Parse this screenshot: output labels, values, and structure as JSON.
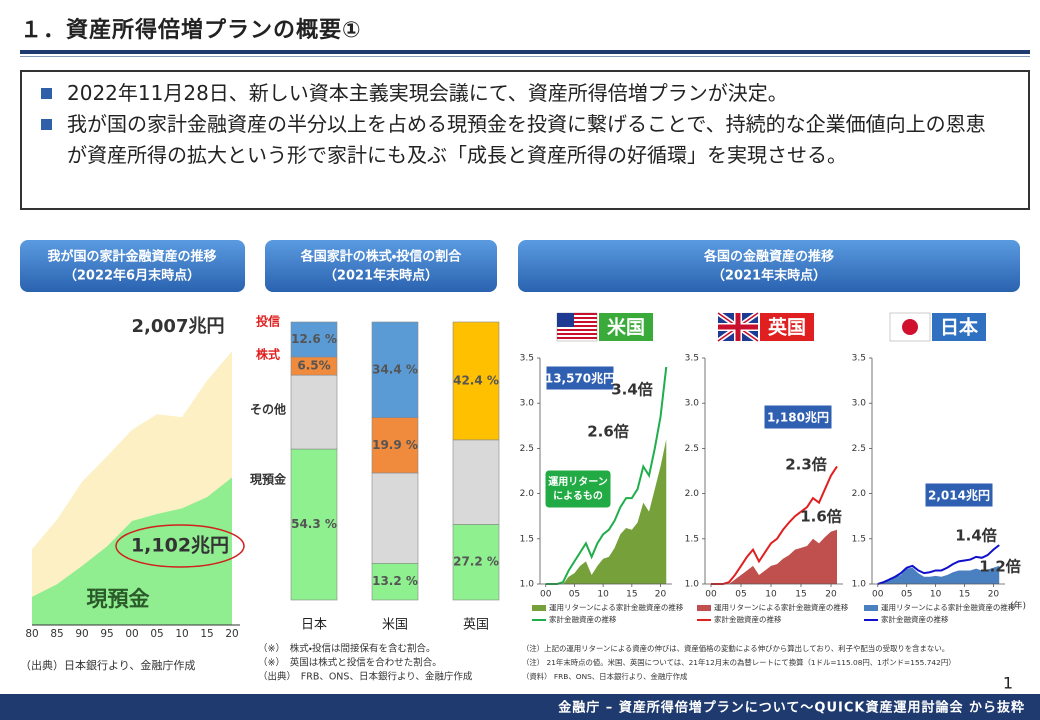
{
  "header": {
    "title": "１．資産所得倍増プランの概要①"
  },
  "bullets": [
    "2022年11月28日、新しい資本主義実現会議にて、資産所得倍増プランが決定。",
    "我が国の家計金融資産の半分以上を占める現預金を投資に繋げることで、持続的な企業価値向上の恩恵が資産所得の拡大という形で家計にも及ぶ「成長と資産所得の好循環」を実現させる。"
  ],
  "panels": [
    {
      "title": "我が国の家計金融資産の推移",
      "subtitle": "（2022年6月末時点）"
    },
    {
      "title": "各国家計の株式・投信の割合",
      "subtitle": "（2021年末時点）"
    },
    {
      "title": "各国の金融資産の推移",
      "subtitle": "（2021年末時点）"
    }
  ],
  "chart_data": [
    {
      "type": "area",
      "categories": [
        "80",
        "85",
        "90",
        "95",
        "00",
        "05",
        "10",
        "15",
        "20"
      ],
      "ylim": [
        0,
        2100
      ],
      "series": [
        {
          "color": "#fdf0c4",
          "values": [
            540,
            750,
            1020,
            1200,
            1390,
            1500,
            1480,
            1740,
            1950
          ]
        },
        {
          "name": "現預金",
          "color": "#90ee90",
          "values": [
            200,
            290,
            420,
            560,
            740,
            790,
            830,
            910,
            1050
          ]
        }
      ],
      "annotations": [
        "2,007兆円",
        "1,102兆円"
      ]
    },
    {
      "type": "stacked_bar",
      "categories": [
        "日本",
        "米国",
        "英国"
      ],
      "ylim": [
        0,
        100
      ],
      "series": [
        {
          "name": "現預金",
          "color": "#8ef08e",
          "label_color": "#333333",
          "values": [
            54.3,
            13.2,
            27.2
          ],
          "value_labels": [
            "54.3 %",
            "13.2 %",
            "27.2 %"
          ]
        },
        {
          "name": "その他",
          "color": "#d9d9d9",
          "label_color": "#333333",
          "values": [
            26.6,
            32.5,
            30.4
          ]
        },
        {
          "name": "株式",
          "color": "#f08a3c",
          "label_color": "#e02020",
          "values": [
            6.5,
            19.9,
            null
          ],
          "value_labels": [
            "6.5%",
            "19.9 %",
            null
          ]
        },
        {
          "name": "投信",
          "color": "#5b9bd5",
          "label_color": "#e02020",
          "values": [
            12.6,
            34.4,
            null
          ],
          "value_labels": [
            "12.6 %",
            "34.4 %",
            null
          ]
        },
        {
          "color": "#ffc000",
          "values": [
            null,
            null,
            42.4
          ],
          "value_labels": [
            null,
            null,
            "42.4 %"
          ]
        }
      ]
    },
    {
      "type": "line",
      "title": "米国",
      "x": [
        0,
        1,
        2,
        3,
        4,
        5,
        6,
        7,
        8,
        9,
        10,
        11,
        12,
        13,
        14,
        15,
        16,
        17,
        18,
        19,
        20,
        21
      ],
      "xlim": [
        -1,
        22
      ],
      "ylim": [
        1,
        3.5
      ],
      "xticks": [
        {
          "value": 0,
          "label": "00"
        },
        {
          "value": 5,
          "label": "05"
        },
        10,
        15,
        20
      ],
      "yticks": [
        {
          "value": 1,
          "label": "1.0"
        },
        1.5,
        {
          "value": 2,
          "label": "2.0"
        },
        2.5,
        {
          "value": 3,
          "label": "3.0"
        },
        3.5
      ],
      "series": [
        {
          "name": "運用リターンによる家計金融資産の推移",
          "style": "area",
          "color": "#76a03a",
          "values": [
            1.0,
            1.0,
            1.0,
            1.0,
            1.08,
            1.12,
            1.2,
            1.25,
            1.1,
            1.2,
            1.28,
            1.3,
            1.4,
            1.55,
            1.62,
            1.6,
            1.68,
            1.9,
            1.8,
            2.05,
            2.3,
            2.6
          ]
        },
        {
          "name": "家計金融資産の推移",
          "style": "line",
          "color": "#1fae4a",
          "values": [
            1.0,
            1.0,
            1.0,
            1.02,
            1.15,
            1.25,
            1.35,
            1.45,
            1.3,
            1.45,
            1.55,
            1.6,
            1.7,
            1.85,
            1.95,
            1.95,
            2.05,
            2.3,
            2.2,
            2.5,
            2.85,
            3.4
          ]
        }
      ],
      "annotations": [
        "13,570兆円",
        "3.4倍",
        "2.6倍"
      ],
      "note": [
        "運用リターン",
        "によるもの"
      ]
    },
    {
      "type": "line",
      "title": "英国",
      "x": [
        0,
        1,
        2,
        3,
        4,
        5,
        6,
        7,
        8,
        9,
        10,
        11,
        12,
        13,
        14,
        15,
        16,
        17,
        18,
        19,
        20,
        21
      ],
      "xlim": [
        -1,
        22
      ],
      "ylim": [
        1,
        3.5
      ],
      "xticks": [
        {
          "value": 0,
          "label": "00"
        },
        {
          "value": 5,
          "label": "05"
        },
        10,
        15,
        20
      ],
      "yticks": [
        {
          "value": 1,
          "label": "1.0"
        },
        1.5,
        {
          "value": 2,
          "label": "2.0"
        },
        2.5,
        {
          "value": 3,
          "label": "3.0"
        },
        3.5
      ],
      "series": [
        {
          "name": "運用リターンによる家計金融資産の推移",
          "style": "area",
          "color": "#c0504d",
          "values": [
            1.0,
            1.0,
            1.0,
            1.0,
            1.05,
            1.1,
            1.15,
            1.2,
            1.1,
            1.15,
            1.2,
            1.22,
            1.28,
            1.32,
            1.38,
            1.4,
            1.42,
            1.5,
            1.45,
            1.52,
            1.58,
            1.6
          ]
        },
        {
          "name": "家計金融資産の推移",
          "style": "line",
          "color": "#e02020",
          "values": [
            1.0,
            1.0,
            1.0,
            1.02,
            1.1,
            1.2,
            1.3,
            1.38,
            1.25,
            1.35,
            1.45,
            1.5,
            1.6,
            1.68,
            1.75,
            1.8,
            1.85,
            1.95,
            1.9,
            2.05,
            2.2,
            2.3
          ]
        }
      ],
      "annotations": [
        "1,180兆円",
        "2.3倍",
        "1.6倍"
      ]
    },
    {
      "type": "line",
      "title": "日本",
      "x": [
        0,
        1,
        2,
        3,
        4,
        5,
        6,
        7,
        8,
        9,
        10,
        11,
        12,
        13,
        14,
        15,
        16,
        17,
        18,
        19,
        20,
        21
      ],
      "xlim": [
        -1,
        22
      ],
      "ylim": [
        1,
        3.5
      ],
      "xlabel": "(年)",
      "xticks": [
        {
          "value": 0,
          "label": "00"
        },
        {
          "value": 5,
          "label": "05"
        },
        10,
        15,
        20
      ],
      "yticks": [
        {
          "value": 1,
          "label": "1.0"
        },
        1.5,
        {
          "value": 2,
          "label": "2.0"
        },
        2.5,
        {
          "value": 3,
          "label": "3.0"
        },
        3.5
      ],
      "series": [
        {
          "name": "運用リターンによる家計金融資産の推移",
          "style": "area",
          "color": "#4a7fc0",
          "values": [
            1.0,
            1.01,
            1.05,
            1.08,
            1.1,
            1.17,
            1.18,
            1.12,
            1.08,
            1.08,
            1.09,
            1.08,
            1.1,
            1.13,
            1.15,
            1.15,
            1.15,
            1.17,
            1.15,
            1.16,
            1.18,
            1.2
          ]
        },
        {
          "name": "家計金融資産の推移",
          "style": "line",
          "color": "#1010cc",
          "values": [
            1.0,
            1.02,
            1.05,
            1.08,
            1.12,
            1.18,
            1.2,
            1.15,
            1.12,
            1.13,
            1.15,
            1.15,
            1.18,
            1.22,
            1.25,
            1.26,
            1.27,
            1.3,
            1.29,
            1.32,
            1.38,
            1.43
          ]
        }
      ],
      "annotations": [
        "2,014兆円",
        "1.4倍",
        "1.2倍"
      ]
    }
  ],
  "notes": {
    "left": "（出典）日本銀行より、金融庁作成",
    "middle": [
      "（※）　株式・投信は間接保有を含む割合。",
      "（※）　英国は株式と投信を合わせた割合。",
      "（出典）　FRB、ONS、日本銀行より、金融庁作成"
    ],
    "right": [
      "（注）上記の運用リターンによる資産の伸びは、資産価格の変動による伸びから算出しており、利子や配当の受取りを含まない。",
      "（注） 21年末時点の値。米国、英国については、21年12月末の為替レートにて換算（1ドル=115.08円、1ポンド=155.742円）",
      "（資料） FRB、ONS、日本銀行より、金融庁作成"
    ]
  },
  "footer": {
    "text": "金融庁 – 資産所得倍増プランについて～QUICK資産運用討論会 から抜粋",
    "page": 1
  }
}
